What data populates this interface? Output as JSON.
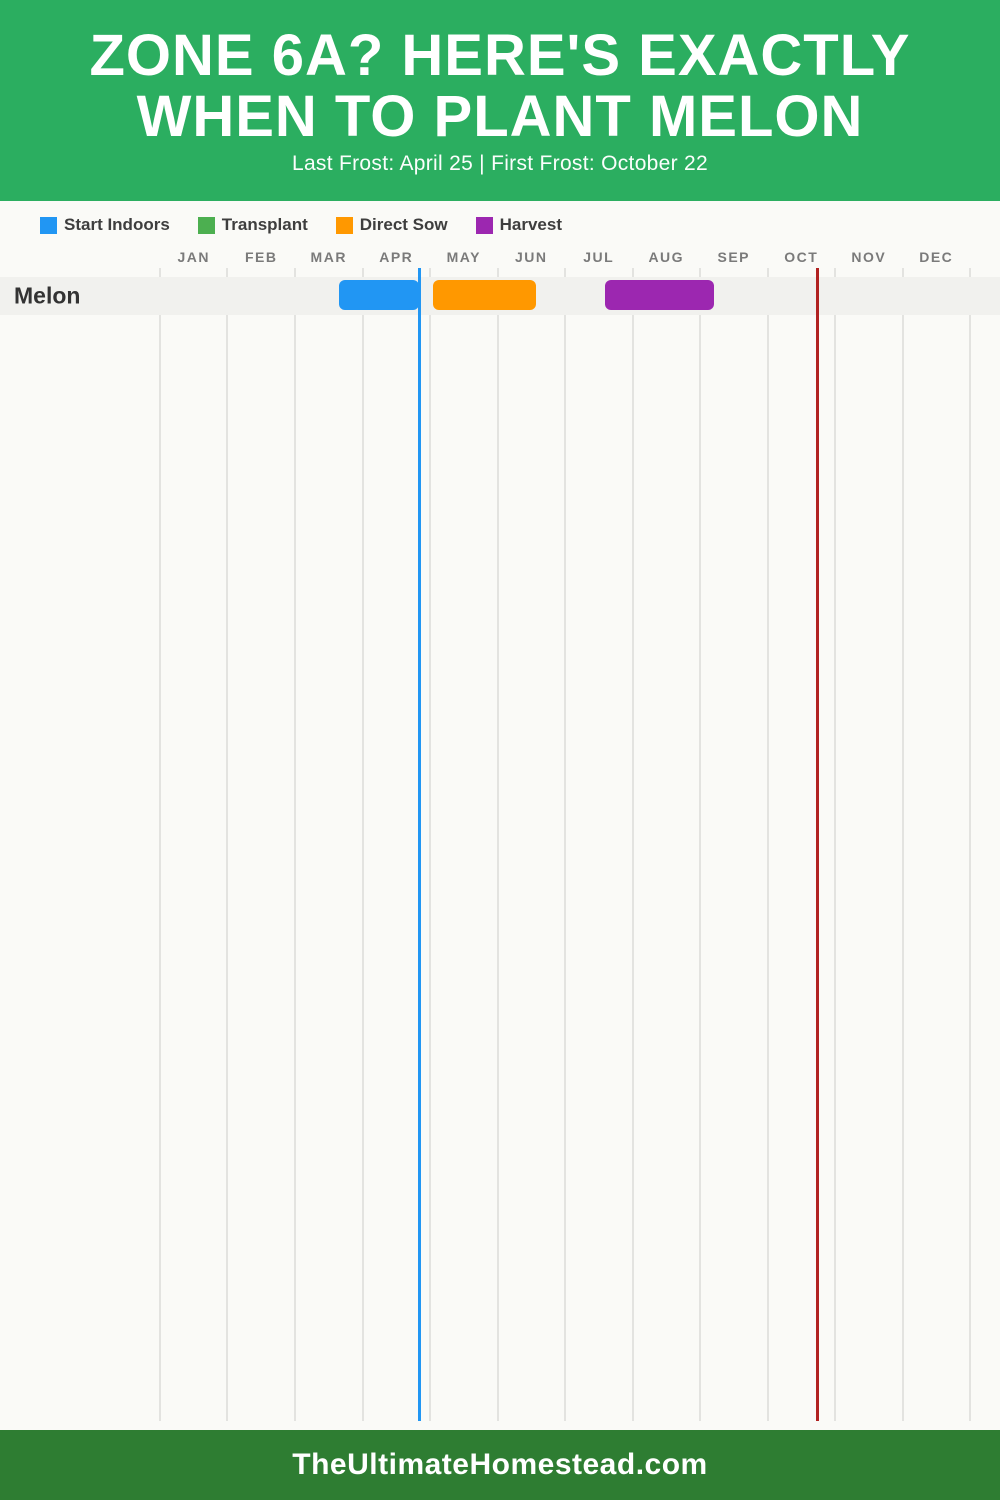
{
  "header": {
    "title_line1": "ZONE 6A? HERE'S EXACTLY",
    "title_line2": "WHEN TO PLANT MELON",
    "subtitle": "Last Frost: April 25 | First Frost: October 22",
    "bg_color": "#2BAE60"
  },
  "legend": {
    "items": [
      {
        "label": "Start Indoors",
        "color": "#2196F3"
      },
      {
        "label": "Transplant",
        "color": "#4CAF50"
      },
      {
        "label": "Direct Sow",
        "color": "#FF9800"
      },
      {
        "label": "Harvest",
        "color": "#9C27B0"
      }
    ]
  },
  "chart_data": {
    "type": "gantt",
    "title": "Zone 6A planting calendar for Melon",
    "months": [
      "JAN",
      "FEB",
      "MAR",
      "APR",
      "MAY",
      "JUN",
      "JUL",
      "AUG",
      "SEP",
      "OCT",
      "NOV",
      "DEC"
    ],
    "rows": [
      {
        "label": "Melon",
        "bars": [
          {
            "name": "Start Indoors",
            "color": "#2196F3",
            "start_pct": 22.1,
            "end_pct": 32.0
          },
          {
            "name": "Direct Sow",
            "color": "#FF9800",
            "start_pct": 33.7,
            "end_pct": 46.4
          },
          {
            "name": "Harvest",
            "color": "#9C27B0",
            "start_pct": 54.9,
            "end_pct": 68.4
          }
        ]
      }
    ],
    "markers": [
      {
        "name": "Last Frost",
        "date": "April 25",
        "color": "#2196F3",
        "pct": 32.0
      },
      {
        "name": "First Frost",
        "date": "October 22",
        "color": "#B12221",
        "pct": 81.2
      }
    ],
    "layout": {
      "grid": true,
      "num_month_columns": 12,
      "row_band_color": "#F1F1EE",
      "gridline_color": "#E3E3E0",
      "background_color": "#FAFAF7"
    }
  },
  "footer": {
    "text": "TheUltimateHomestead.com",
    "bg_color": "#2E7D32"
  }
}
